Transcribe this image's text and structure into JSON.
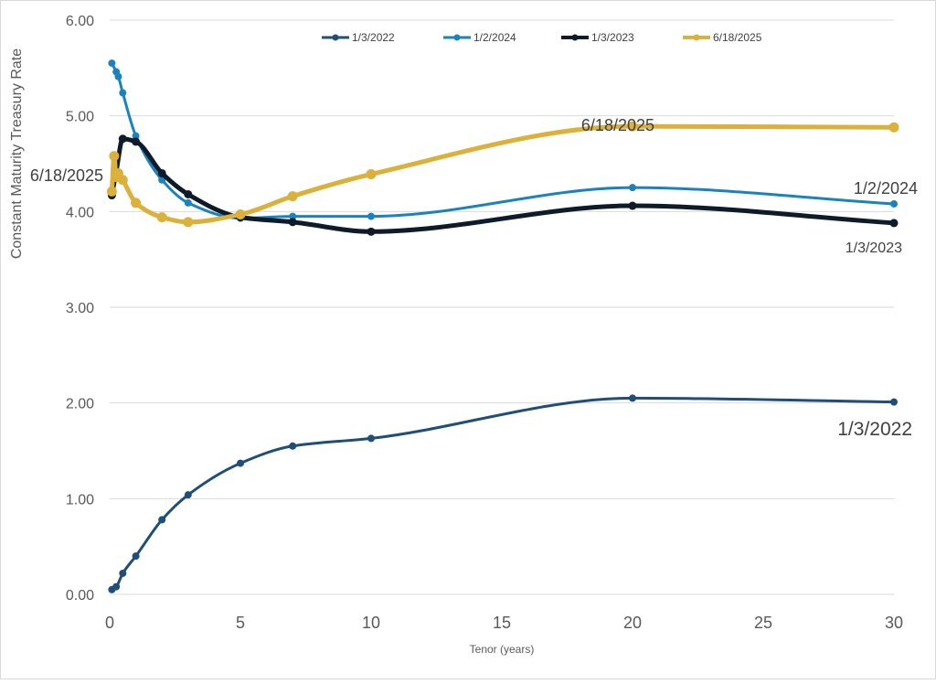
{
  "chart_data": {
    "type": "line",
    "title": "",
    "xlabel": "Tenor (years)",
    "ylabel": "Constant Maturity Treasury Rate",
    "xlim": [
      0,
      30
    ],
    "ylim": [
      0,
      6
    ],
    "x_ticks": [
      0,
      5,
      10,
      15,
      20,
      25,
      30
    ],
    "x_tick_labels": [
      "0",
      "5",
      "10",
      "15",
      "20",
      "25",
      "30"
    ],
    "y_ticks": [
      0,
      1,
      2,
      3,
      4,
      5,
      6
    ],
    "y_tick_labels": [
      "0.00",
      "1.00",
      "2.00",
      "3.00",
      "4.00",
      "5.00",
      "6.00"
    ],
    "grid": "horizontal",
    "legend_position": "top",
    "series": [
      {
        "name": "1/3/2022",
        "color": "#1f4e79",
        "x": [
          0.083,
          0.25,
          0.5,
          1,
          2,
          3,
          5,
          7,
          10,
          20,
          30
        ],
        "values": [
          0.05,
          0.08,
          0.22,
          0.4,
          0.78,
          1.04,
          1.37,
          1.55,
          1.63,
          2.05,
          2.01
        ],
        "end_label": "1/3/2022"
      },
      {
        "name": "1/2/2024",
        "color": "#1b82c0",
        "x": [
          0.083,
          0.25,
          0.33,
          0.5,
          1,
          2,
          3,
          5,
          7,
          10,
          20,
          30
        ],
        "values": [
          5.55,
          5.46,
          5.41,
          5.24,
          4.79,
          4.33,
          4.09,
          3.93,
          3.95,
          3.95,
          4.25,
          4.08
        ],
        "end_label": "1/2/2024"
      },
      {
        "name": "1/3/2023",
        "color": "#0d1b2a",
        "x": [
          0.083,
          0.25,
          0.5,
          1,
          2,
          3,
          5,
          7,
          10,
          20,
          30
        ],
        "values": [
          4.17,
          4.42,
          4.76,
          4.73,
          4.4,
          4.18,
          3.94,
          3.89,
          3.79,
          4.06,
          3.88
        ],
        "end_label": "1/3/2023"
      },
      {
        "name": "6/18/2025",
        "color": "#dbb13b",
        "x": [
          0.083,
          0.17,
          0.25,
          0.33,
          0.5,
          1,
          2,
          3,
          5,
          7,
          10,
          20,
          30
        ],
        "values": [
          4.21,
          4.58,
          4.36,
          4.4,
          4.33,
          4.09,
          3.94,
          3.89,
          3.97,
          4.16,
          4.39,
          4.89,
          4.88
        ],
        "start_label": "6/18/2025",
        "mid_label": "6/18/2025"
      }
    ]
  }
}
